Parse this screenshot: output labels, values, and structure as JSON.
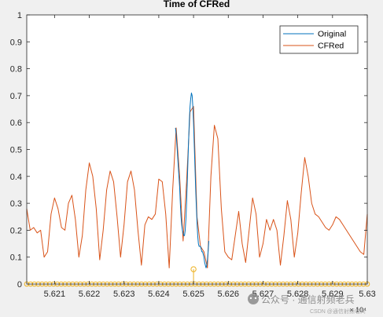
{
  "chart_data": {
    "type": "line",
    "title": "Time of CFRed",
    "xlabel": "",
    "ylabel": "",
    "xlim": [
      5.6202,
      5.63
    ],
    "ylim": [
      0,
      1
    ],
    "x_multiplier": "× 10⁴",
    "xticks": [
      "5.621",
      "5.622",
      "5.623",
      "5.624",
      "5.625",
      "5.626",
      "5.627",
      "5.628",
      "5.629",
      "5.63"
    ],
    "yticks": [
      "0",
      "0.1",
      "0.2",
      "0.3",
      "0.4",
      "0.5",
      "0.6",
      "0.7",
      "0.8",
      "0.9",
      "1"
    ],
    "grid": false,
    "legend_position": "top-right",
    "series": [
      {
        "name": "Original",
        "color": "#0072bd",
        "x": [
          5.62448,
          5.6245,
          5.62452,
          5.62454,
          5.62456,
          5.62458,
          5.6246,
          5.62462,
          5.62464,
          5.62466,
          5.62468,
          5.6247,
          5.62472,
          5.62474,
          5.62476,
          5.62478,
          5.6248,
          5.62482,
          5.62484,
          5.62486,
          5.62488,
          5.6249,
          5.62492,
          5.62494,
          5.62496,
          5.62498,
          5.625,
          5.62502,
          5.62504,
          5.62506,
          5.62508,
          5.6251,
          5.62512,
          5.62514,
          5.62516,
          5.62518,
          5.6252,
          5.62522,
          5.62524,
          5.62526,
          5.62528,
          5.6253,
          5.62532,
          5.62534,
          5.62536,
          5.62538,
          5.6254,
          5.62542,
          5.62544
        ],
        "y": [
          0.58,
          0.56,
          0.52,
          0.48,
          0.44,
          0.4,
          0.36,
          0.3,
          0.25,
          0.22,
          0.2,
          0.19,
          0.18,
          0.18,
          0.2,
          0.24,
          0.3,
          0.38,
          0.46,
          0.54,
          0.61,
          0.66,
          0.69,
          0.71,
          0.7,
          0.66,
          0.6,
          0.52,
          0.44,
          0.36,
          0.29,
          0.23,
          0.18,
          0.15,
          0.14,
          0.14,
          0.14,
          0.13,
          0.12,
          0.12,
          0.11,
          0.1,
          0.08,
          0.07,
          0.06,
          0.07,
          0.09,
          0.12,
          0.16
        ]
      },
      {
        "name": "CFRed",
        "color": "#d95319",
        "x": [
          5.6202,
          5.6203,
          5.6204,
          5.6205,
          5.6206,
          5.6207,
          5.6208,
          5.6209,
          5.621,
          5.6211,
          5.6212,
          5.6213,
          5.6214,
          5.6215,
          5.6216,
          5.6217,
          5.6218,
          5.6219,
          5.622,
          5.6221,
          5.6222,
          5.6223,
          5.6224,
          5.6225,
          5.6226,
          5.6227,
          5.6228,
          5.6229,
          5.623,
          5.6231,
          5.6232,
          5.6233,
          5.6234,
          5.6235,
          5.6236,
          5.6237,
          5.6238,
          5.6239,
          5.624,
          5.6241,
          5.6242,
          5.6243,
          5.6244,
          5.6245,
          5.6246,
          5.6247,
          5.6248,
          5.6249,
          5.625,
          5.6251,
          5.6252,
          5.6253,
          5.6254,
          5.6255,
          5.6256,
          5.6257,
          5.6258,
          5.6259,
          5.626,
          5.6261,
          5.6262,
          5.6263,
          5.6264,
          5.6265,
          5.6266,
          5.6267,
          5.6268,
          5.6269,
          5.627,
          5.6271,
          5.6272,
          5.6273,
          5.6274,
          5.6275,
          5.6276,
          5.6277,
          5.6278,
          5.6279,
          5.628,
          5.6281,
          5.6282,
          5.6283,
          5.6284,
          5.6285,
          5.6286,
          5.6287,
          5.6288,
          5.6289,
          5.629,
          5.6291,
          5.6292,
          5.6293,
          5.6294,
          5.6295,
          5.6296,
          5.6297,
          5.6298,
          5.6299,
          5.63
        ],
        "y": [
          0.28,
          0.2,
          0.21,
          0.19,
          0.2,
          0.1,
          0.12,
          0.26,
          0.32,
          0.28,
          0.21,
          0.2,
          0.3,
          0.33,
          0.24,
          0.1,
          0.18,
          0.35,
          0.45,
          0.4,
          0.28,
          0.09,
          0.2,
          0.35,
          0.42,
          0.38,
          0.25,
          0.1,
          0.22,
          0.38,
          0.42,
          0.35,
          0.2,
          0.07,
          0.22,
          0.25,
          0.24,
          0.26,
          0.39,
          0.38,
          0.26,
          0.06,
          0.35,
          0.58,
          0.4,
          0.16,
          0.38,
          0.64,
          0.66,
          0.25,
          0.14,
          0.12,
          0.06,
          0.4,
          0.59,
          0.54,
          0.28,
          0.12,
          0.1,
          0.09,
          0.18,
          0.27,
          0.15,
          0.08,
          0.2,
          0.32,
          0.26,
          0.1,
          0.15,
          0.24,
          0.2,
          0.24,
          0.2,
          0.07,
          0.18,
          0.31,
          0.24,
          0.1,
          0.19,
          0.34,
          0.47,
          0.4,
          0.3,
          0.26,
          0.25,
          0.23,
          0.21,
          0.2,
          0.22,
          0.25,
          0.24,
          0.22,
          0.2,
          0.18,
          0.16,
          0.14,
          0.12,
          0.11,
          0.26
        ]
      }
    ],
    "stem_markers": {
      "x_start": 5.6202,
      "x_end": 5.63,
      "count": 90,
      "baseline_y": 0,
      "color": "#edb120",
      "peak": {
        "x": 5.625,
        "y": 0.055
      }
    }
  },
  "watermark": {
    "icon": "wechat-icon",
    "text": "公众号 · 通信射频老兵",
    "subtext": "CSDN @通信射频老兵"
  }
}
